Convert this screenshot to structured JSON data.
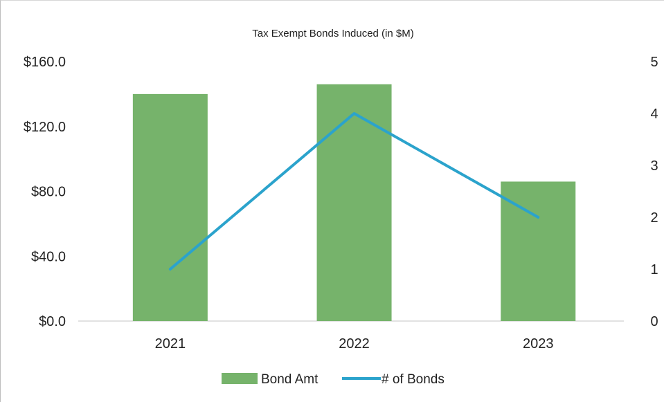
{
  "chart_data": {
    "type": "bar",
    "title": "Tax Exempt Bonds Induced (in $M)",
    "categories": [
      "2021",
      "2022",
      "2023"
    ],
    "series": [
      {
        "name": "Bond Amt",
        "type": "bar",
        "axis": "left",
        "values": [
          140.0,
          146.0,
          86.0
        ],
        "color": "#76b36b"
      },
      {
        "name": "# of Bonds",
        "type": "line",
        "axis": "right",
        "values": [
          1,
          4,
          2
        ],
        "color": "#2ba3cc"
      }
    ],
    "left_axis": {
      "ylim": [
        0,
        160
      ],
      "ticks": [
        0,
        40,
        80,
        120,
        160
      ],
      "tick_labels": [
        "$0.0",
        "$40.0",
        "$80.0",
        "$120.0",
        "$160.0"
      ]
    },
    "right_axis": {
      "ylim": [
        0,
        5
      ],
      "ticks": [
        0,
        1,
        2,
        3,
        4,
        5
      ],
      "tick_labels": [
        "0",
        "1",
        "2",
        "3",
        "4",
        "5"
      ]
    },
    "xlabel": "",
    "ylabel": "",
    "grid": false,
    "legend_position": "bottom"
  }
}
